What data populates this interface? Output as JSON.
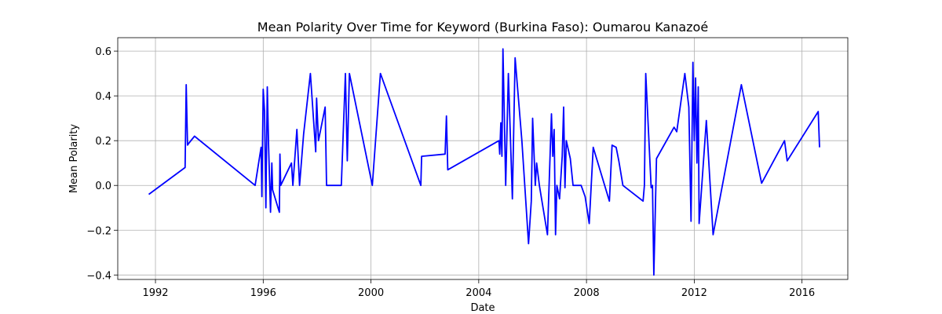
{
  "chart_data": {
    "type": "line",
    "title": "Mean Polarity Over Time for Keyword (Burkina Faso): Oumarou Kanazoé",
    "xlabel": "Date",
    "ylabel": "Mean Polarity",
    "xlim": [
      1990.6,
      2017.7
    ],
    "ylim": [
      -0.42,
      0.66
    ],
    "xticks": [
      1992,
      1996,
      2000,
      2004,
      2008,
      2012,
      2016
    ],
    "yticks": [
      -0.4,
      -0.2,
      0.0,
      0.2,
      0.4,
      0.6
    ],
    "ytick_labels": [
      "−0.4",
      "−0.2",
      "0.0",
      "0.2",
      "0.4",
      "0.6"
    ],
    "grid": true,
    "line_color": "#0000ff",
    "series": [
      {
        "x": [
          1991.75,
          1993.1,
          1993.14,
          1993.19,
          1993.25,
          1993.45,
          1995.7,
          1995.92,
          1995.95,
          1996.0,
          1996.05,
          1996.1,
          1996.15,
          1996.2,
          1996.27,
          1996.32,
          1996.35,
          1996.6,
          1996.62,
          1996.65,
          1997.05,
          1997.1,
          1997.25,
          1997.35,
          1997.5,
          1997.75,
          1997.95,
          1997.98,
          1998.05,
          1998.3,
          1998.35,
          1998.9,
          1999.05,
          1999.12,
          1999.2,
          2000.05,
          2000.35,
          2001.85,
          2001.88,
          2002.75,
          2002.8,
          2002.85,
          2004.75,
          2004.78,
          2004.82,
          2004.86,
          2004.9,
          2005.0,
          2005.1,
          2005.25,
          2005.35,
          2005.6,
          2005.85,
          2005.95,
          2006.0,
          2006.1,
          2006.15,
          2006.25,
          2006.55,
          2006.7,
          2006.75,
          2006.8,
          2006.85,
          2006.9,
          2007.0,
          2007.1,
          2007.15,
          2007.2,
          2007.25,
          2007.4,
          2007.5,
          2007.8,
          2007.95,
          2008.1,
          2008.25,
          2008.35,
          2008.85,
          2008.95,
          2009.1,
          2009.2,
          2009.35,
          2010.1,
          2010.15,
          2010.2,
          2010.4,
          2010.45,
          2010.5,
          2010.6,
          2011.25,
          2011.35,
          2011.65,
          2011.8,
          2011.88,
          2011.95,
          2012.0,
          2012.05,
          2012.1,
          2012.15,
          2012.18,
          2012.45,
          2012.7,
          2013.75,
          2014.5,
          2015.35,
          2015.45,
          2016.6,
          2016.65
        ],
        "y": [
          -0.04,
          0.08,
          0.45,
          0.18,
          0.19,
          0.22,
          0.0,
          0.17,
          -0.05,
          0.43,
          0.33,
          -0.1,
          0.44,
          0.17,
          -0.12,
          0.1,
          -0.02,
          -0.12,
          0.14,
          0.0,
          0.1,
          0.0,
          0.25,
          0.0,
          0.23,
          0.5,
          0.15,
          0.39,
          0.2,
          0.35,
          0.0,
          0.0,
          0.5,
          0.11,
          0.5,
          0.0,
          0.5,
          0.0,
          0.13,
          0.14,
          0.31,
          0.07,
          0.2,
          0.14,
          0.28,
          0.13,
          0.61,
          0.0,
          0.5,
          -0.06,
          0.57,
          0.2,
          -0.26,
          -0.07,
          0.3,
          0.0,
          0.1,
          0.0,
          -0.22,
          0.32,
          0.13,
          0.25,
          -0.22,
          0.0,
          -0.06,
          0.13,
          0.35,
          -0.01,
          0.2,
          0.12,
          0.0,
          0.0,
          -0.05,
          -0.17,
          0.17,
          0.13,
          -0.07,
          0.18,
          0.17,
          0.11,
          0.0,
          -0.07,
          0.0,
          0.5,
          -0.01,
          0.0,
          -0.4,
          0.12,
          0.26,
          0.24,
          0.5,
          0.35,
          -0.16,
          0.55,
          0.2,
          0.48,
          0.1,
          0.44,
          -0.17,
          0.29,
          -0.22,
          0.45,
          0.01,
          0.2,
          0.11,
          0.33,
          0.17
        ]
      }
    ]
  }
}
